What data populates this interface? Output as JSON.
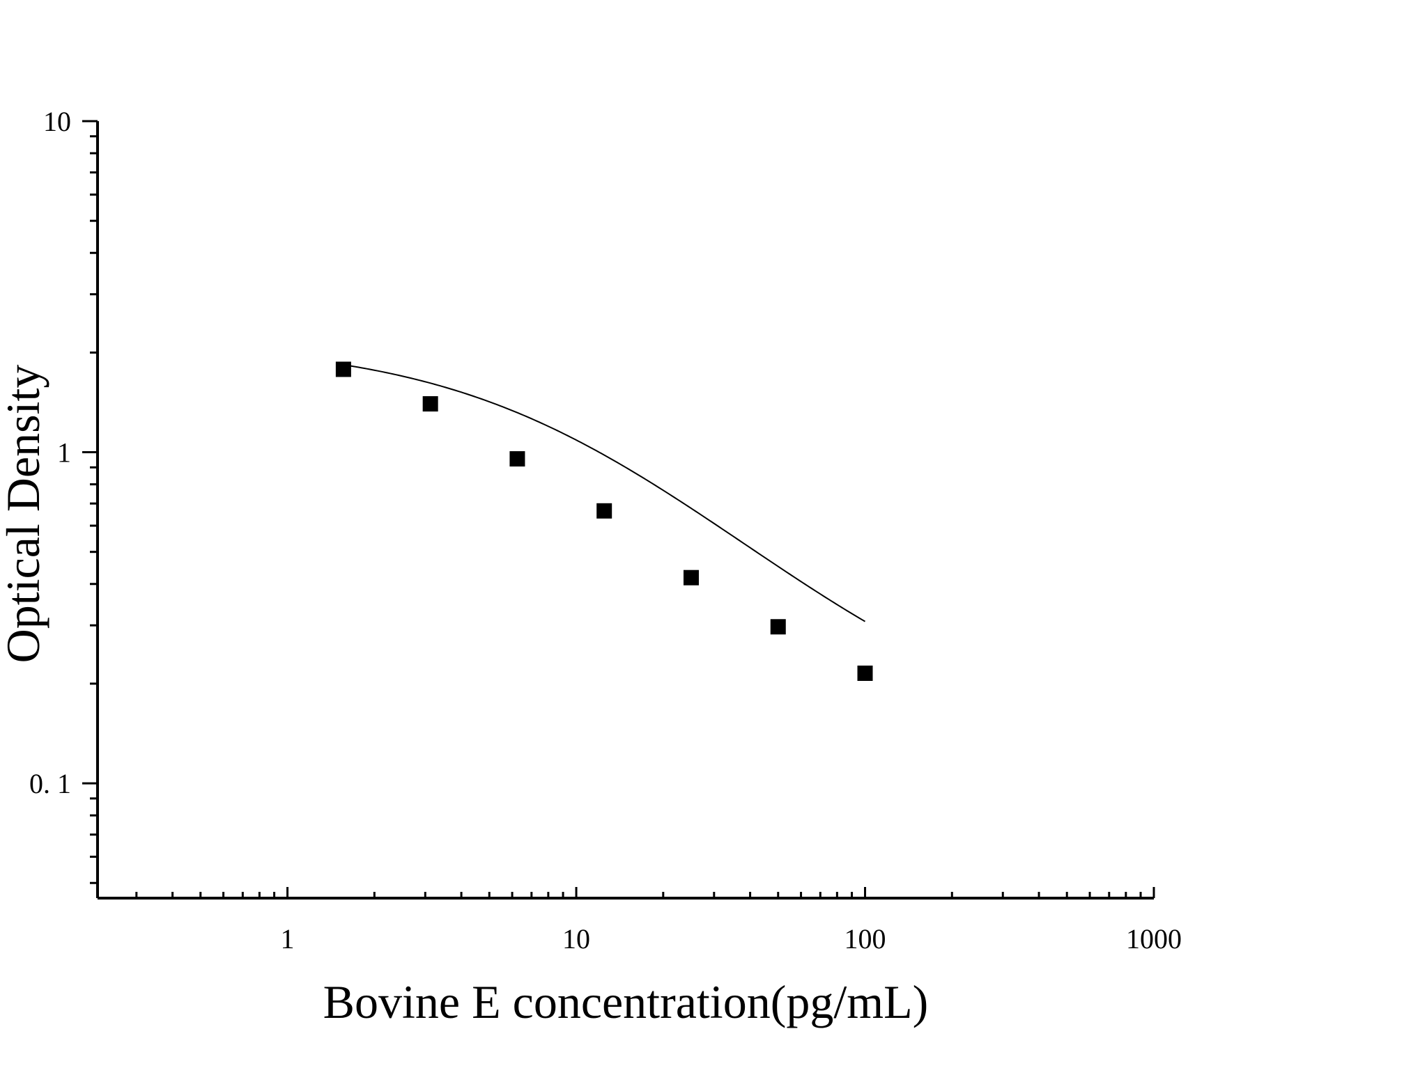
{
  "chart_data": {
    "type": "scatter",
    "title": "",
    "xlabel": "Bovine E concentration(pg/mL)",
    "ylabel": "Optical Density",
    "x_scale": "log",
    "y_scale": "log",
    "xlim": [
      0.22,
      1000
    ],
    "ylim": [
      0.045,
      10
    ],
    "x_ticks": [
      {
        "value": 1,
        "label": "1"
      },
      {
        "value": 10,
        "label": "10"
      },
      {
        "value": 100,
        "label": "100"
      },
      {
        "value": 1000,
        "label": "1000"
      }
    ],
    "y_ticks": [
      {
        "value": 0.1,
        "label": "0. 1"
      },
      {
        "value": 1,
        "label": "1"
      },
      {
        "value": 10,
        "label": "10"
      }
    ],
    "grid": false,
    "legend": "none",
    "marker": "square",
    "color": "#000000",
    "series": [
      {
        "x": [
          1.5625,
          3.125,
          6.25,
          12.5,
          25,
          50,
          100
        ],
        "y": [
          1.78,
          1.4,
          0.955,
          0.665,
          0.418,
          0.297,
          0.215
        ]
      }
    ],
    "fit_curve": {
      "type": "4PL",
      "a": 2.15,
      "b": 0.97,
      "c": 9.0,
      "d": 0.13
    }
  }
}
